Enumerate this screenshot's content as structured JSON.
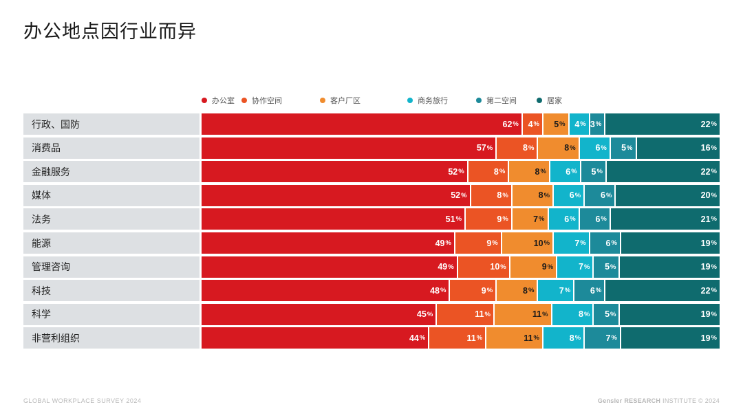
{
  "page": {
    "title": "办公地点因行业而异",
    "footer_left": "GLOBAL WORKPLACE SURVEY 2024",
    "footer_right_brand": "Gensler RESEARCH",
    "footer_right_rest": "INSTITUTE © 2024"
  },
  "chart_data": {
    "type": "bar",
    "orientation": "horizontal",
    "stacked": true,
    "value_unit": "%",
    "title": "办公地点因行业而异",
    "categories": [
      "行政、国防",
      "消费品",
      "金融服务",
      "媒体",
      "法务",
      "能源",
      "管理咨询",
      "科技",
      "科学",
      "非营利组织"
    ],
    "series": [
      {
        "name": "办公室",
        "color": "#d71920",
        "values": [
          62,
          57,
          52,
          52,
          51,
          49,
          49,
          48,
          45,
          44
        ]
      },
      {
        "name": "协作空间",
        "color": "#eb5424",
        "values": [
          4,
          8,
          8,
          8,
          9,
          9,
          10,
          9,
          11,
          11
        ]
      },
      {
        "name": "客户厂区",
        "color": "#f08c2e",
        "values": [
          5,
          8,
          8,
          8,
          7,
          10,
          9,
          8,
          11,
          11
        ]
      },
      {
        "name": "商务旅行",
        "color": "#12b4cb",
        "values": [
          4,
          6,
          6,
          6,
          6,
          7,
          7,
          7,
          8,
          8
        ]
      },
      {
        "name": "第二空间",
        "color": "#1d8a9a",
        "values": [
          3,
          5,
          5,
          6,
          6,
          6,
          5,
          6,
          5,
          7
        ]
      },
      {
        "name": "居家",
        "color": "#0f6b6e",
        "values": [
          22,
          16,
          22,
          20,
          21,
          19,
          19,
          22,
          19,
          19
        ]
      }
    ],
    "legend_position": "top",
    "grid": false
  }
}
